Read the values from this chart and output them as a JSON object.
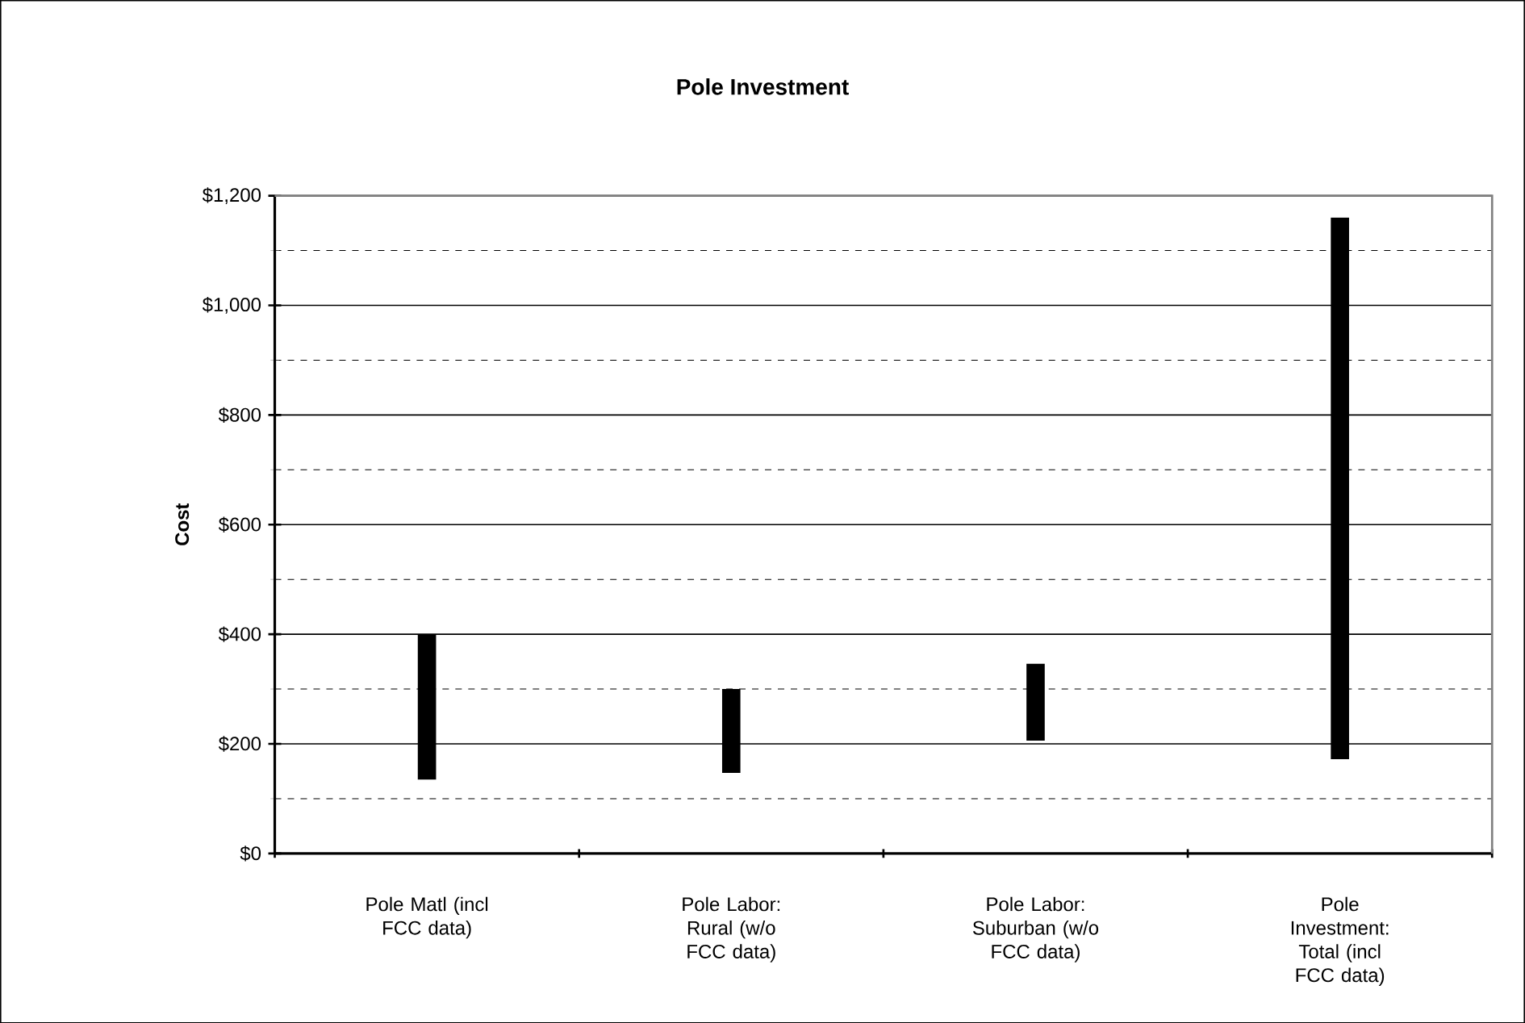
{
  "chart_data": {
    "type": "bar",
    "title": "Pole Investment",
    "ylabel": "Cost",
    "categories": [
      "Pole Matl (incl FCC data)",
      "Pole Labor: Rural (w/o FCC data)",
      "Pole Labor: Suburban (w/o FCC data)",
      "Pole Investment: Total (incl FCC data)"
    ],
    "base": [
      135,
      147,
      206,
      172
    ],
    "values": [
      265,
      153,
      140,
      988
    ],
    "color": "#000000",
    "ylim": [
      0,
      1200
    ],
    "yticks": [
      {
        "value": 0,
        "label": "$0"
      },
      {
        "value": 200,
        "label": "$200"
      },
      {
        "value": 400,
        "label": "$400"
      },
      {
        "value": 600,
        "label": "$600"
      },
      {
        "value": 800,
        "label": "$800"
      },
      {
        "value": 1000,
        "label": "$1,000"
      },
      {
        "value": 1200,
        "label": "$1,200"
      }
    ],
    "grid": "y"
  }
}
